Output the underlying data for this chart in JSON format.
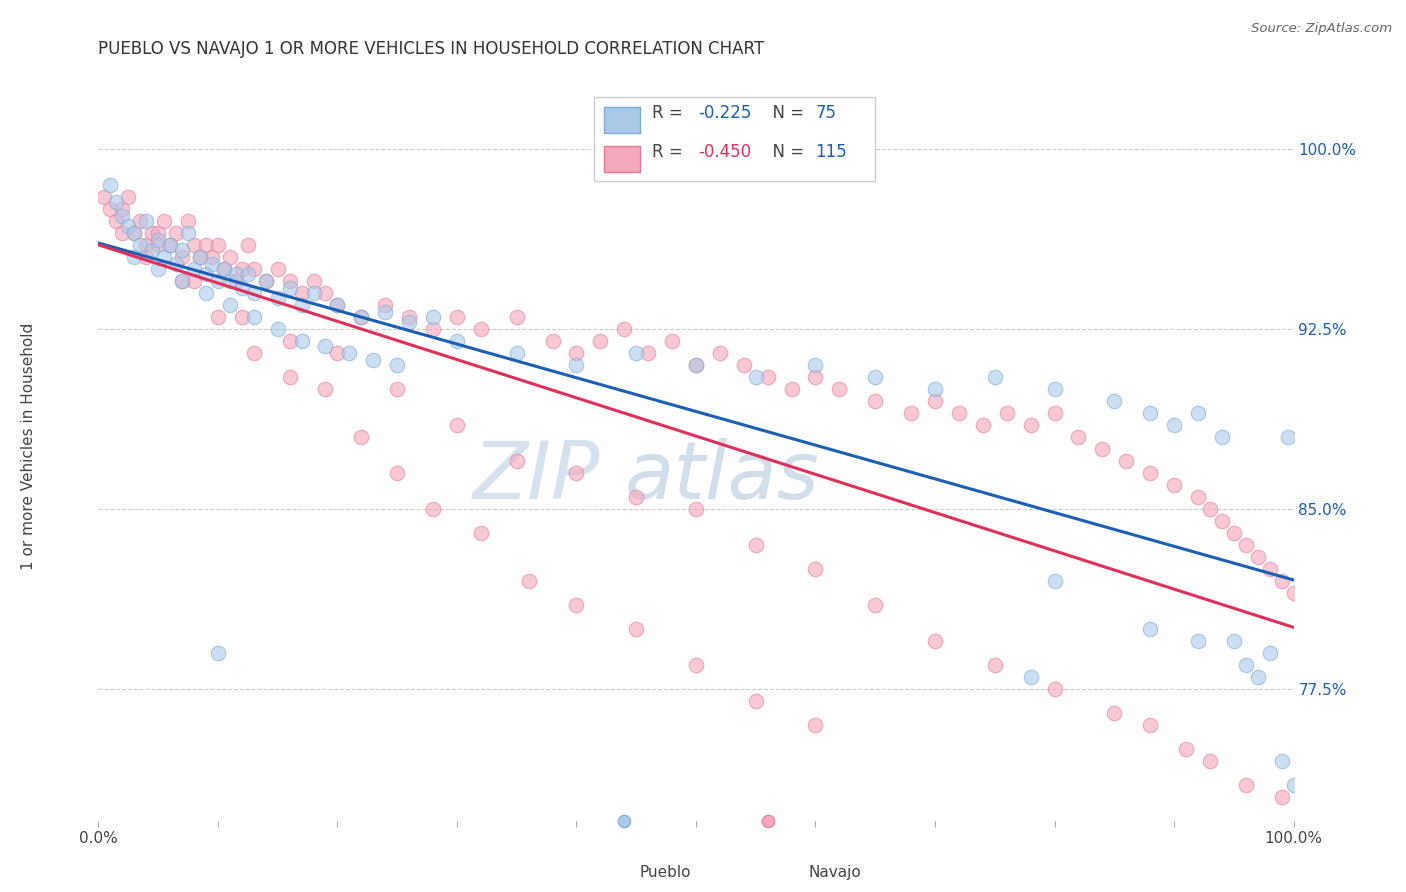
{
  "title": "PUEBLO VS NAVAJO 1 OR MORE VEHICLES IN HOUSEHOLD CORRELATION CHART",
  "source": "Source: ZipAtlas.com",
  "ylabel": "1 or more Vehicles in Household",
  "xlim": [
    0.0,
    100.0
  ],
  "ylim": [
    72.0,
    102.5
  ],
  "ytick_positions": [
    77.5,
    85.0,
    92.5,
    100.0
  ],
  "ytick_labels": [
    "77.5%",
    "85.0%",
    "92.5%",
    "100.0%"
  ],
  "pueblo_color": "#aac8e8",
  "navajo_color": "#f5a8bc",
  "pueblo_edge": "#7aacd4",
  "navajo_edge": "#e87898",
  "blue_line_color": "#1a5fb4",
  "pink_line_color": "#e0305a",
  "pueblo_R": -0.225,
  "pueblo_N": 75,
  "navajo_R": -0.45,
  "navajo_N": 115,
  "marker_size": 110,
  "alpha": 0.6,
  "pueblo_x": [
    1.0,
    1.5,
    2.0,
    2.5,
    3.0,
    3.5,
    4.0,
    4.5,
    5.0,
    5.5,
    6.0,
    6.5,
    7.0,
    7.5,
    8.0,
    8.5,
    9.0,
    9.5,
    10.0,
    10.5,
    11.0,
    11.5,
    12.0,
    12.5,
    13.0,
    14.0,
    15.0,
    16.0,
    17.0,
    18.0,
    20.0,
    22.0,
    24.0,
    26.0,
    28.0,
    3.0,
    5.0,
    7.0,
    9.0,
    11.0,
    13.0,
    15.0,
    17.0,
    19.0,
    21.0,
    23.0,
    25.0,
    30.0,
    35.0,
    40.0,
    45.0,
    50.0,
    55.0,
    60.0,
    65.0,
    70.0,
    75.0,
    80.0,
    85.0,
    88.0,
    90.0,
    92.0,
    94.0,
    95.0,
    96.0,
    97.0,
    98.0,
    99.0,
    99.5,
    100.0,
    88.0,
    92.0,
    78.0,
    80.0,
    10.0
  ],
  "pueblo_y": [
    98.5,
    97.8,
    97.2,
    96.8,
    96.5,
    96.0,
    97.0,
    95.8,
    96.2,
    95.5,
    96.0,
    95.2,
    95.8,
    96.5,
    95.0,
    95.5,
    94.8,
    95.2,
    94.5,
    95.0,
    94.5,
    94.8,
    94.2,
    94.8,
    94.0,
    94.5,
    93.8,
    94.2,
    93.5,
    94.0,
    93.5,
    93.0,
    93.2,
    92.8,
    93.0,
    95.5,
    95.0,
    94.5,
    94.0,
    93.5,
    93.0,
    92.5,
    92.0,
    91.8,
    91.5,
    91.2,
    91.0,
    92.0,
    91.5,
    91.0,
    91.5,
    91.0,
    90.5,
    91.0,
    90.5,
    90.0,
    90.5,
    90.0,
    89.5,
    89.0,
    88.5,
    89.0,
    88.0,
    79.5,
    78.5,
    78.0,
    79.0,
    74.5,
    88.0,
    73.5,
    80.0,
    79.5,
    78.0,
    82.0,
    79.0
  ],
  "navajo_x": [
    0.5,
    1.0,
    1.5,
    2.0,
    2.5,
    3.0,
    3.5,
    4.0,
    4.5,
    5.0,
    5.5,
    6.0,
    6.5,
    7.0,
    7.5,
    8.0,
    8.5,
    9.0,
    9.5,
    10.0,
    10.5,
    11.0,
    11.5,
    12.0,
    12.5,
    13.0,
    14.0,
    15.0,
    16.0,
    17.0,
    18.0,
    19.0,
    20.0,
    22.0,
    24.0,
    26.0,
    28.0,
    30.0,
    32.0,
    35.0,
    38.0,
    40.0,
    42.0,
    44.0,
    46.0,
    48.0,
    50.0,
    52.0,
    54.0,
    56.0,
    58.0,
    60.0,
    62.0,
    65.0,
    68.0,
    70.0,
    72.0,
    74.0,
    76.0,
    78.0,
    80.0,
    82.0,
    84.0,
    86.0,
    88.0,
    90.0,
    92.0,
    93.0,
    94.0,
    95.0,
    96.0,
    97.0,
    98.0,
    99.0,
    100.0,
    2.0,
    5.0,
    8.0,
    12.0,
    16.0,
    20.0,
    25.0,
    30.0,
    35.0,
    40.0,
    45.0,
    50.0,
    55.0,
    60.0,
    65.0,
    70.0,
    75.0,
    80.0,
    85.0,
    88.0,
    91.0,
    93.0,
    96.0,
    99.0,
    4.0,
    7.0,
    10.0,
    13.0,
    16.0,
    19.0,
    22.0,
    25.0,
    28.0,
    32.0,
    36.0,
    40.0,
    45.0,
    50.0,
    55.0,
    60.0
  ],
  "navajo_y": [
    98.0,
    97.5,
    97.0,
    97.5,
    98.0,
    96.5,
    97.0,
    96.0,
    96.5,
    96.5,
    97.0,
    96.0,
    96.5,
    95.5,
    97.0,
    96.0,
    95.5,
    96.0,
    95.5,
    96.0,
    95.0,
    95.5,
    94.5,
    95.0,
    96.0,
    95.0,
    94.5,
    95.0,
    94.5,
    94.0,
    94.5,
    94.0,
    93.5,
    93.0,
    93.5,
    93.0,
    92.5,
    93.0,
    92.5,
    93.0,
    92.0,
    91.5,
    92.0,
    92.5,
    91.5,
    92.0,
    91.0,
    91.5,
    91.0,
    90.5,
    90.0,
    90.5,
    90.0,
    89.5,
    89.0,
    89.5,
    89.0,
    88.5,
    89.0,
    88.5,
    89.0,
    88.0,
    87.5,
    87.0,
    86.5,
    86.0,
    85.5,
    85.0,
    84.5,
    84.0,
    83.5,
    83.0,
    82.5,
    82.0,
    81.5,
    96.5,
    96.0,
    94.5,
    93.0,
    92.0,
    91.5,
    90.0,
    88.5,
    87.0,
    86.5,
    85.5,
    85.0,
    83.5,
    82.5,
    81.0,
    79.5,
    78.5,
    77.5,
    76.5,
    76.0,
    75.0,
    74.5,
    73.5,
    73.0,
    95.5,
    94.5,
    93.0,
    91.5,
    90.5,
    90.0,
    88.0,
    86.5,
    85.0,
    84.0,
    82.0,
    81.0,
    80.0,
    78.5,
    77.0,
    76.0
  ]
}
